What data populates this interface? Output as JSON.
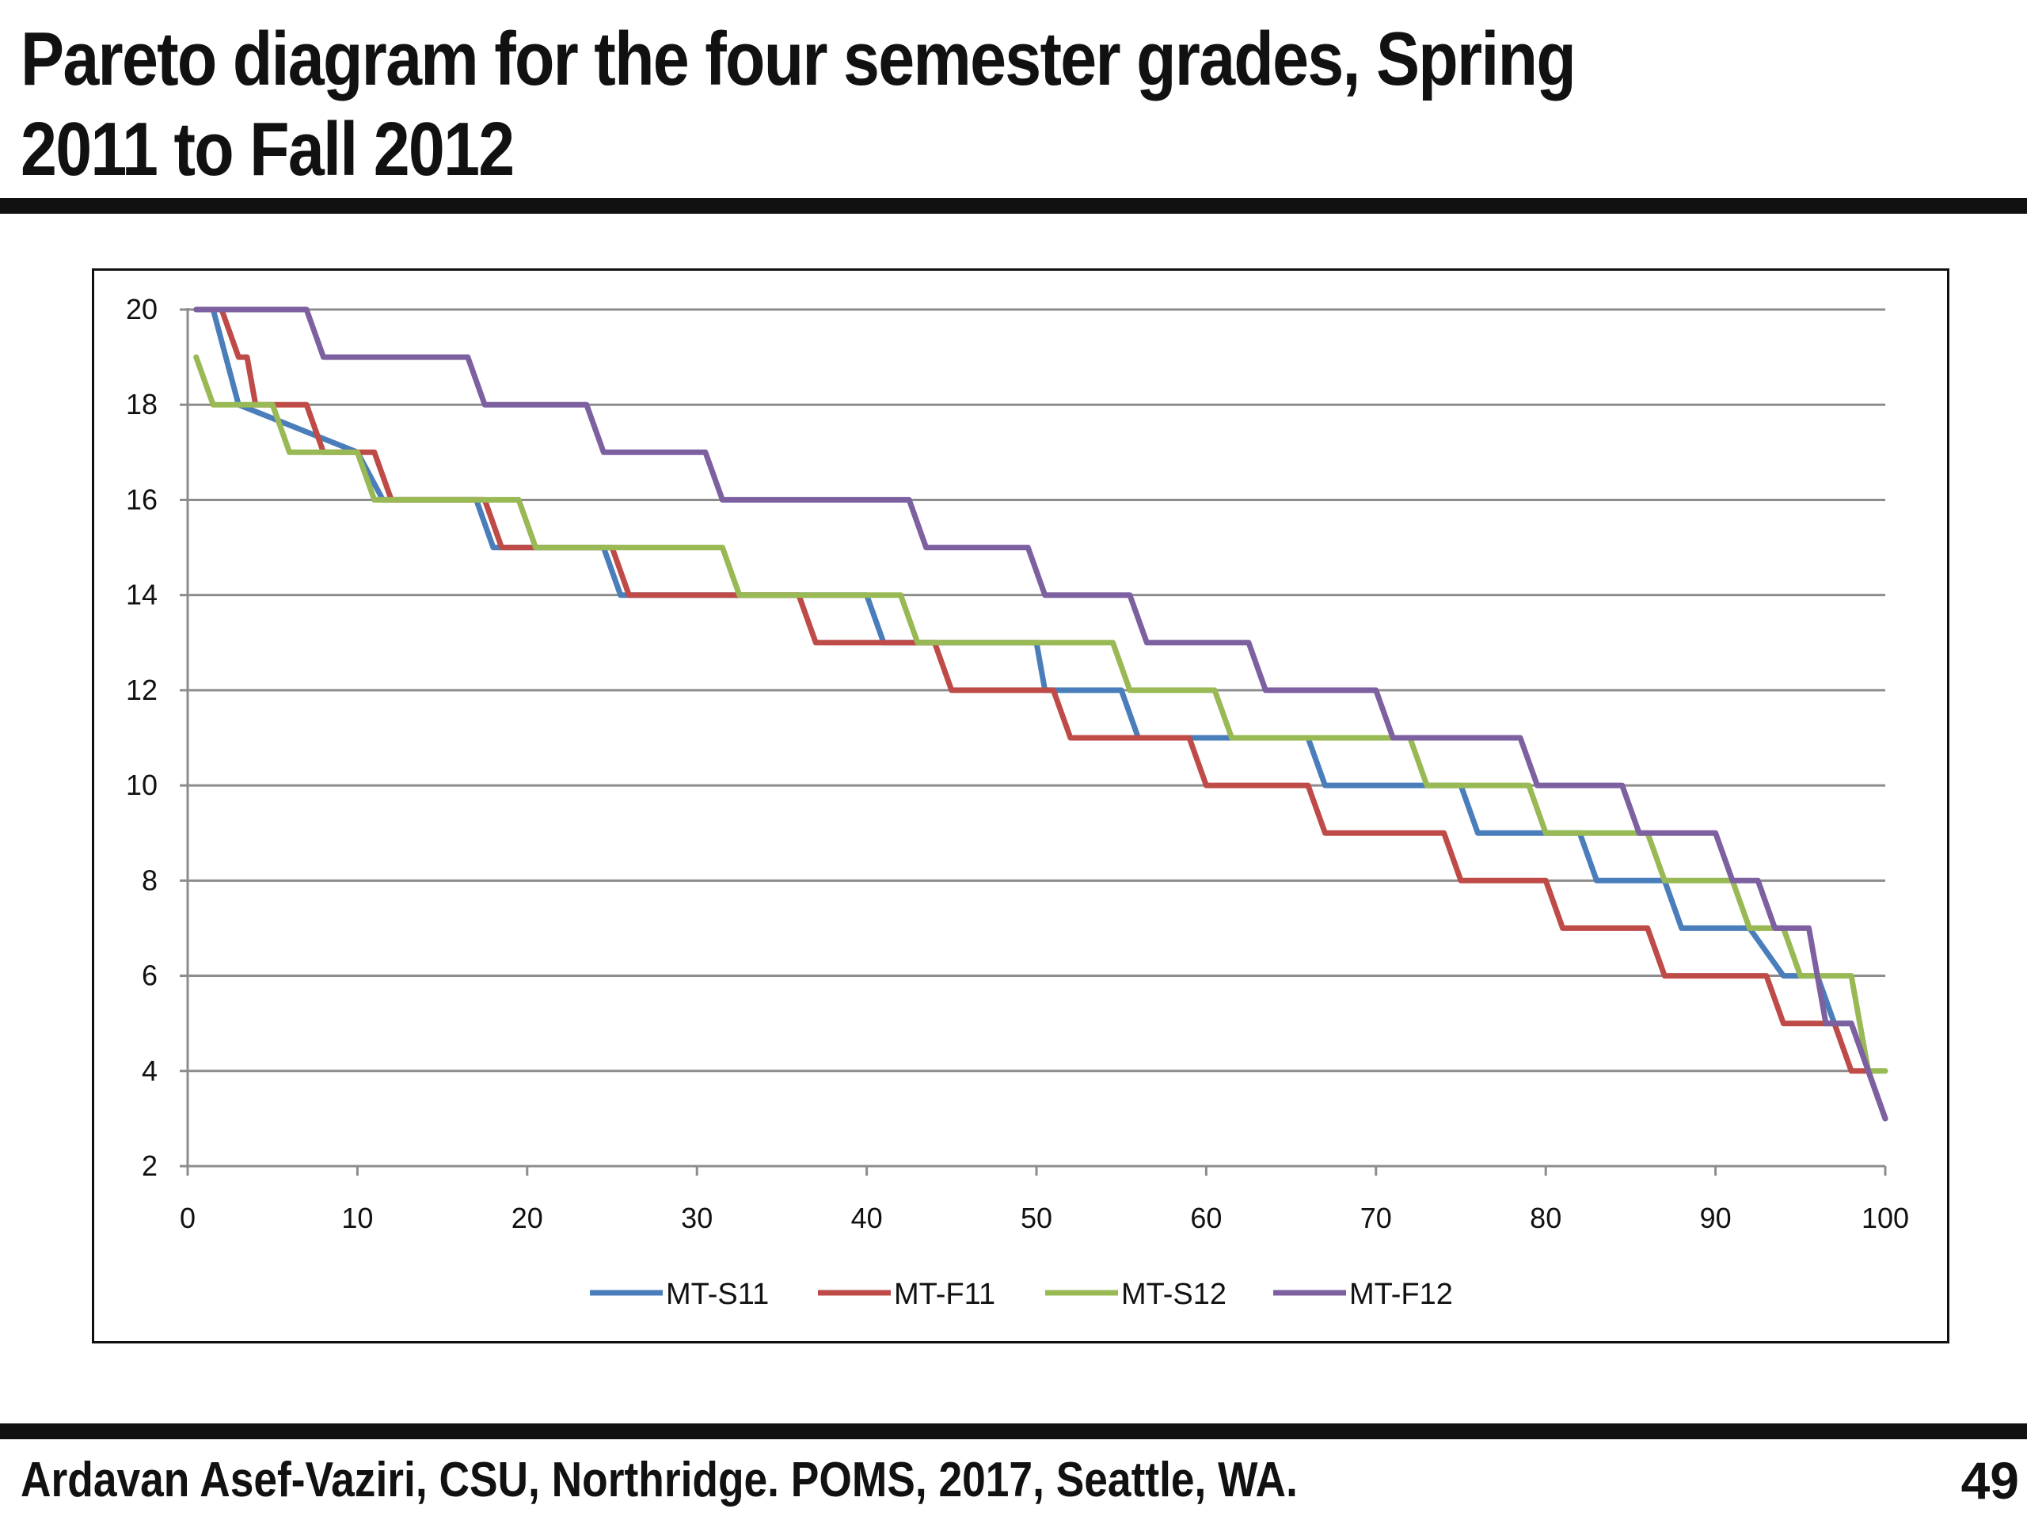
{
  "slide": {
    "title": "Pareto diagram for the four semester grades, Spring 2011 to Fall 2012",
    "footer": "Ardavan  Asef-Vaziri, CSU, Northridge. POMS, 2017, Seattle, WA.",
    "page_number": "49"
  },
  "chart_data": {
    "type": "line",
    "title": "",
    "xlabel": "",
    "ylabel": "",
    "xlim": [
      0,
      100
    ],
    "ylim": [
      2,
      20
    ],
    "x_ticks": [
      0,
      10,
      20,
      30,
      40,
      50,
      60,
      70,
      80,
      90,
      100
    ],
    "y_ticks": [
      2,
      4,
      6,
      8,
      10,
      12,
      14,
      16,
      18,
      20
    ],
    "grid": "horizontal",
    "legend_position": "bottom",
    "series": [
      {
        "name": "MT-S11",
        "color": "#4a7ebb",
        "points": [
          [
            1,
            20
          ],
          [
            1.5,
            20
          ],
          [
            3,
            18
          ],
          [
            10,
            17
          ],
          [
            11.5,
            16
          ],
          [
            17,
            16
          ],
          [
            18,
            15
          ],
          [
            24.5,
            15
          ],
          [
            25.5,
            14
          ],
          [
            40,
            14
          ],
          [
            41,
            13
          ],
          [
            50,
            13
          ],
          [
            50.5,
            12
          ],
          [
            55,
            12
          ],
          [
            56,
            11
          ],
          [
            66,
            11
          ],
          [
            67,
            10
          ],
          [
            75,
            10
          ],
          [
            76,
            9
          ],
          [
            82,
            9
          ],
          [
            83,
            8
          ],
          [
            87,
            8
          ],
          [
            88,
            7
          ],
          [
            92,
            7
          ],
          [
            94,
            6
          ],
          [
            96,
            6
          ],
          [
            97,
            5
          ],
          [
            98,
            5
          ],
          [
            99,
            4
          ],
          [
            100,
            3
          ]
        ]
      },
      {
        "name": "MT-F11",
        "color": "#be4b48",
        "points": [
          [
            1,
            20
          ],
          [
            2,
            20
          ],
          [
            3,
            19
          ],
          [
            3.5,
            19
          ],
          [
            4,
            18
          ],
          [
            7,
            18
          ],
          [
            8,
            17
          ],
          [
            11,
            17
          ],
          [
            12,
            16
          ],
          [
            17.5,
            16
          ],
          [
            18.5,
            15
          ],
          [
            25,
            15
          ],
          [
            26,
            14
          ],
          [
            36,
            14
          ],
          [
            37,
            13
          ],
          [
            44,
            13
          ],
          [
            45,
            12
          ],
          [
            51,
            12
          ],
          [
            52,
            11
          ],
          [
            59,
            11
          ],
          [
            60,
            10
          ],
          [
            66,
            10
          ],
          [
            67,
            9
          ],
          [
            74,
            9
          ],
          [
            75,
            8
          ],
          [
            80,
            8
          ],
          [
            81,
            7
          ],
          [
            86,
            7
          ],
          [
            87,
            6
          ],
          [
            93,
            6
          ],
          [
            94,
            5
          ],
          [
            97,
            5
          ],
          [
            98,
            4
          ],
          [
            99,
            4
          ],
          [
            100,
            3
          ]
        ]
      },
      {
        "name": "MT-S12",
        "color": "#98b954",
        "points": [
          [
            0.5,
            19
          ],
          [
            1.5,
            18
          ],
          [
            5,
            18
          ],
          [
            6,
            17
          ],
          [
            10,
            17
          ],
          [
            11,
            16
          ],
          [
            19.5,
            16
          ],
          [
            20.5,
            15
          ],
          [
            31.5,
            15
          ],
          [
            32.5,
            14
          ],
          [
            42,
            14
          ],
          [
            43,
            13
          ],
          [
            54.5,
            13
          ],
          [
            55.5,
            12
          ],
          [
            60.5,
            12
          ],
          [
            61.5,
            11
          ],
          [
            72,
            11
          ],
          [
            73,
            10
          ],
          [
            79,
            10
          ],
          [
            80,
            9
          ],
          [
            86,
            9
          ],
          [
            87,
            8
          ],
          [
            91,
            8
          ],
          [
            92,
            7
          ],
          [
            94,
            7
          ],
          [
            95,
            6
          ],
          [
            98,
            6
          ],
          [
            99,
            4
          ],
          [
            100,
            4
          ]
        ]
      },
      {
        "name": "MT-F12",
        "color": "#7d60a0",
        "points": [
          [
            0.5,
            20
          ],
          [
            7,
            20
          ],
          [
            8,
            19
          ],
          [
            16.5,
            19
          ],
          [
            17.5,
            18
          ],
          [
            23.5,
            18
          ],
          [
            24.5,
            17
          ],
          [
            30.5,
            17
          ],
          [
            31.5,
            16
          ],
          [
            42.5,
            16
          ],
          [
            43.5,
            15
          ],
          [
            49.5,
            15
          ],
          [
            50.5,
            14
          ],
          [
            55.5,
            14
          ],
          [
            56.5,
            13
          ],
          [
            62.5,
            13
          ],
          [
            63.5,
            12
          ],
          [
            70,
            12
          ],
          [
            71,
            11
          ],
          [
            78.5,
            11
          ],
          [
            79.5,
            10
          ],
          [
            84.5,
            10
          ],
          [
            85.5,
            9
          ],
          [
            90,
            9
          ],
          [
            91,
            8
          ],
          [
            92.5,
            8
          ],
          [
            93.5,
            7
          ],
          [
            95.5,
            7
          ],
          [
            96.5,
            5
          ],
          [
            98,
            5
          ],
          [
            99,
            4
          ],
          [
            100,
            3
          ]
        ]
      }
    ]
  }
}
